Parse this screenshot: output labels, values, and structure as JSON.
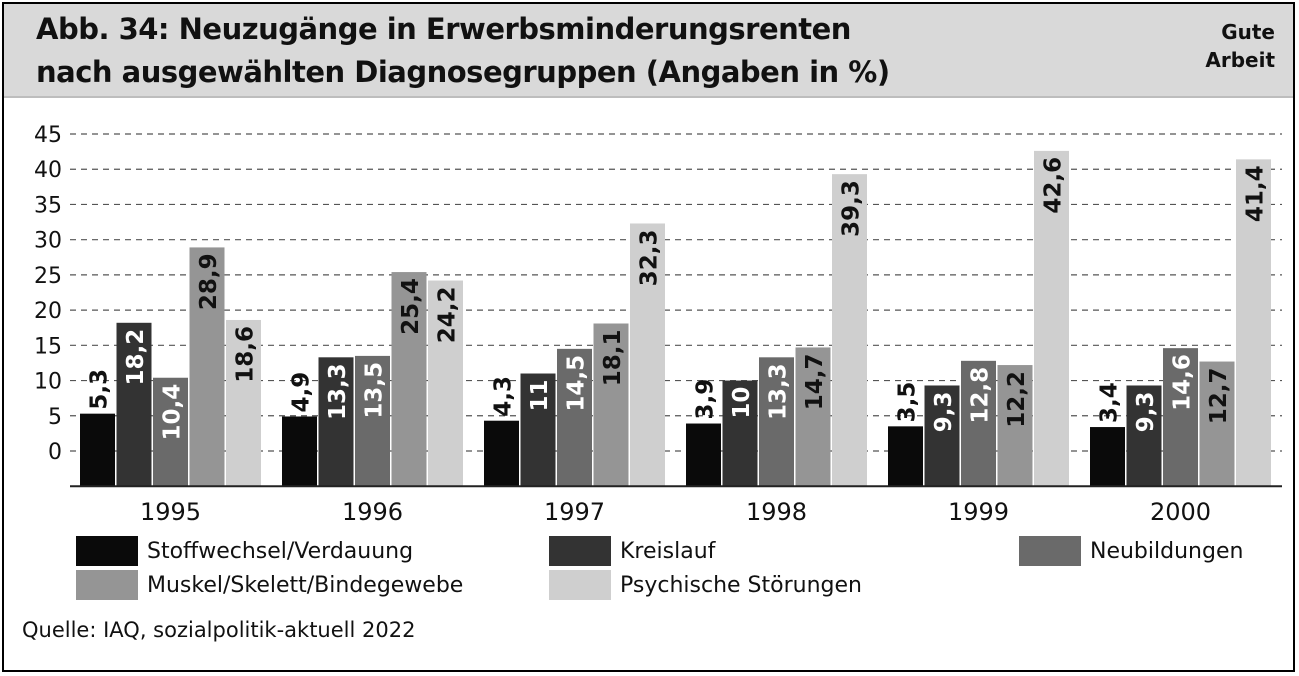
{
  "header": {
    "title_line1": "Abb. 34: Neuzugänge in Erwerbsminderungsrenten",
    "title_line2": "nach ausgewählten Diagnosegruppen (Angaben in %)",
    "brand_line1": "Gute",
    "brand_line2": "Arbeit"
  },
  "source": "Quelle: IAQ, sozialpolitik-aktuell 2022",
  "chart_data": {
    "type": "bar",
    "title": "Abb. 34: Neuzugänge in Erwerbsminderungsrenten nach ausgewählten Diagnosegruppen (Angaben in %)",
    "categories": [
      "1995",
      "1996",
      "1997",
      "1998",
      "1999",
      "2000"
    ],
    "series": [
      {
        "name": "Stoffwechsel/Verdauung",
        "color": "#0a0a0a",
        "values": [
          5.3,
          4.9,
          4.3,
          3.9,
          3.5,
          3.4
        ],
        "labels": [
          "5,3",
          "4,9",
          "4,3",
          "3,9",
          "3,5",
          "3,4"
        ]
      },
      {
        "name": "Kreislauf",
        "color": "#333333",
        "values": [
          18.2,
          13.3,
          11,
          10,
          9.3,
          9.3
        ],
        "labels": [
          "18,2",
          "13,3",
          "11",
          "10",
          "9,3",
          "9,3"
        ]
      },
      {
        "name": "Neubildungen",
        "color": "#6a6a6a",
        "values": [
          10.4,
          13.5,
          14.5,
          13.3,
          12.8,
          14.6
        ],
        "labels": [
          "10,4",
          "13,5",
          "14,5",
          "13,3",
          "12,8",
          "14,6"
        ]
      },
      {
        "name": "Muskel/Skelett/Bindegewebe",
        "color": "#959595",
        "values": [
          28.9,
          25.4,
          18.1,
          14.7,
          12.2,
          12.7
        ],
        "labels": [
          "28,9",
          "25,4",
          "18,1",
          "14,7",
          "12,2",
          "12,7"
        ]
      },
      {
        "name": "Psychische Störungen",
        "color": "#cfcfcf",
        "values": [
          18.6,
          24.2,
          32.3,
          39.3,
          42.6,
          41.4
        ],
        "labels": [
          "18,6",
          "24,2",
          "32,3",
          "39,3",
          "42,6",
          "41,4"
        ]
      }
    ],
    "y_ticks": [
      "45",
      "40",
      "35",
      "30",
      "25",
      "20",
      "15",
      "10",
      "5",
      "0"
    ],
    "ylim": [
      -5,
      45
    ],
    "grid": true,
    "legend_position": "bottom"
  }
}
